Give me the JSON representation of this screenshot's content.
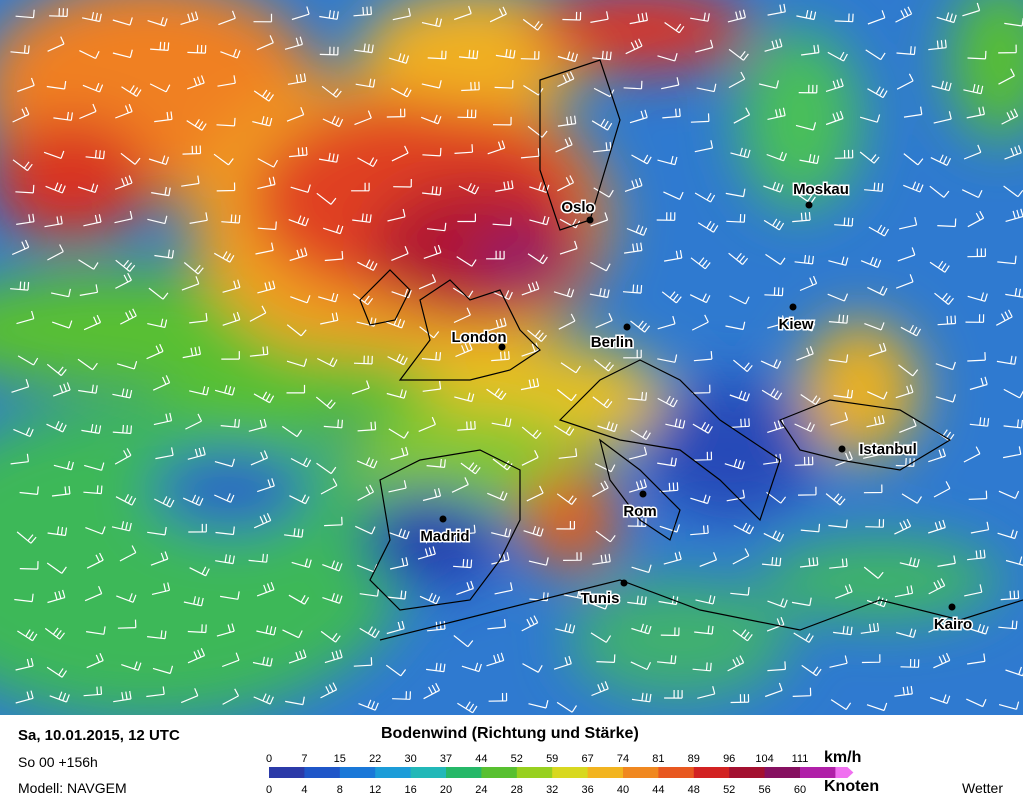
{
  "map": {
    "cities": [
      {
        "label": "Oslo"
      },
      {
        "label": "Moskau"
      },
      {
        "label": "London"
      },
      {
        "label": "Berlin"
      },
      {
        "label": "Kiew"
      },
      {
        "label": "Istanbul"
      },
      {
        "label": "Rom"
      },
      {
        "label": "Madrid"
      },
      {
        "label": "Tunis"
      },
      {
        "label": "Kairo"
      }
    ]
  },
  "footer": {
    "date": "Sa, 10.01.2015, 12 UTC",
    "run": "So 00 +156h",
    "model": "Modell: NAVGEM",
    "title": "Bodenwind (Richtung und Stärke)",
    "unit_kmh": "km/h",
    "unit_knots": "Knoten",
    "brand": "Wetter",
    "kmh": [
      0,
      7,
      15,
      22,
      30,
      37,
      44,
      52,
      59,
      67,
      74,
      81,
      89,
      96,
      104,
      111
    ],
    "knots": [
      0,
      4,
      8,
      12,
      16,
      20,
      24,
      28,
      32,
      36,
      40,
      44,
      48,
      52,
      56,
      60
    ],
    "colors": [
      "#2b3aa8",
      "#1f56c8",
      "#1a78d8",
      "#1c9cd8",
      "#22b8b8",
      "#26b868",
      "#58c030",
      "#98d020",
      "#d8d820",
      "#f2b420",
      "#f08820",
      "#e85820",
      "#d22222",
      "#a31030",
      "#861060",
      "#b020a8",
      "#f070f0"
    ]
  }
}
